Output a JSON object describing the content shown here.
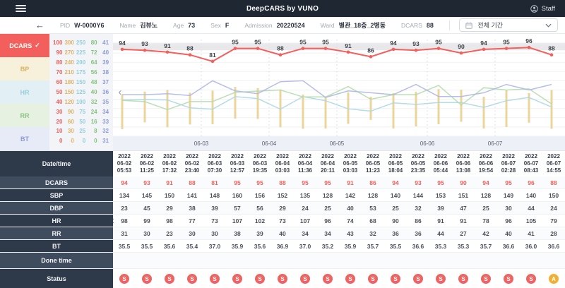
{
  "header": {
    "title": "DeepCARS by VUNO",
    "user_label": "Staff"
  },
  "patient": {
    "fields": [
      {
        "label": "PID",
        "value": "W-0000Y6"
      },
      {
        "label": "Name",
        "value": "김뷰노"
      },
      {
        "label": "Age",
        "value": "73"
      },
      {
        "label": "Sex",
        "value": "F"
      },
      {
        "label": "Admission",
        "value": "20220524"
      },
      {
        "label": "Ward",
        "value": "별관_18층_2병동"
      },
      {
        "label": "DCARS",
        "value": "88"
      }
    ],
    "period_filter": "전체 기간"
  },
  "sidebar": {
    "metrics": [
      {
        "id": "dcars",
        "label": "DCARS",
        "selected": true,
        "bg": "#f25f5c",
        "fg": "#ffffff"
      },
      {
        "id": "bp",
        "label": "BP",
        "selected": false,
        "bg": "#f7f0da",
        "fg": "#d9b35e"
      },
      {
        "id": "hr",
        "label": "HR",
        "selected": false,
        "bg": "#e2eff5",
        "fg": "#97cedd"
      },
      {
        "id": "rr",
        "label": "RR",
        "selected": false,
        "bg": "#e6f1e2",
        "fg": "#8bc482"
      },
      {
        "id": "bt",
        "label": "BT",
        "selected": false,
        "bg": "#e7eaf7",
        "fg": "#8d9ad9"
      }
    ],
    "scales": [
      {
        "metric": "DCARS",
        "color": "#f25f5c",
        "ticks": [
          100,
          90,
          80,
          70,
          60,
          50,
          40,
          30,
          20,
          10,
          0
        ]
      },
      {
        "metric": "BP",
        "color": "#ddb463",
        "ticks": [
          300,
          270,
          240,
          210,
          180,
          150,
          120,
          90,
          60,
          30,
          0
        ]
      },
      {
        "metric": "HR",
        "color": "#93cedd",
        "ticks": [
          250,
          225,
          200,
          175,
          150,
          125,
          100,
          75,
          50,
          25,
          0
        ]
      },
      {
        "metric": "RR",
        "color": "#83c27b",
        "ticks": [
          80,
          72,
          64,
          56,
          48,
          40,
          32,
          24,
          16,
          8,
          0
        ]
      },
      {
        "metric": "BT",
        "color": "#8d9ad9",
        "ticks": [
          41,
          40,
          39,
          38,
          37,
          36,
          35,
          34,
          33,
          32,
          31
        ]
      }
    ]
  },
  "chart_data": {
    "type": "line",
    "title": "DCARS and vital signs trend",
    "x": [
      "2022-06-02 05:53",
      "2022-06-02 11:25",
      "2022-06-02 17:32",
      "2022-06-02 23:40",
      "2022-06-03 07:30",
      "2022-06-03 12:57",
      "2022-06-03 19:35",
      "2022-06-04 03:03",
      "2022-06-04 11:36",
      "2022-06-04 20:11",
      "2022-06-05 03:03",
      "2022-06-05 11:23",
      "2022-06-05 18:04",
      "2022-06-05 23:35",
      "2022-06-06 05:44",
      "2022-06-06 13:08",
      "2022-06-06 19:54",
      "2022-06-07 02:28",
      "2022-06-07 08:43",
      "2022-06-07 14:55"
    ],
    "date_axis_labels": [
      "06-03",
      "06-04",
      "06-05",
      "06-06",
      "06-07"
    ],
    "threshold_band": {
      "from": 93,
      "to": 101,
      "color": "#e8e8eb"
    },
    "series": [
      {
        "name": "DCARS",
        "kind": "line",
        "color": "#f25f5c",
        "range": [
          0,
          100
        ],
        "show_labels": true,
        "values": [
          94,
          93,
          91,
          88,
          81,
          95,
          95,
          88,
          95,
          95,
          91,
          86,
          94,
          93,
          95,
          90,
          94,
          95,
          96,
          88
        ]
      },
      {
        "name": "SBP",
        "kind": "range-high",
        "color": "#ecd49b",
        "range": [
          0,
          300
        ],
        "values": [
          134,
          145,
          150,
          141,
          148,
          160,
          156,
          152,
          135,
          128,
          142,
          128,
          140,
          144,
          153,
          151,
          128,
          149,
          140,
          150
        ]
      },
      {
        "name": "DBP",
        "kind": "range-low",
        "color": "#ecd49b",
        "range": [
          0,
          300
        ],
        "values": [
          23,
          45,
          29,
          38,
          39,
          57,
          56,
          29,
          24,
          25,
          40,
          53,
          25,
          32,
          39,
          47,
          25,
          30,
          44,
          24
        ]
      },
      {
        "name": "HR",
        "kind": "line",
        "color": "#abd8e4",
        "range": [
          0,
          250
        ],
        "values": [
          98,
          99,
          98,
          77,
          73,
          107,
          102,
          73,
          107,
          96,
          74,
          68,
          90,
          86,
          91,
          91,
          78,
          96,
          105,
          79
        ]
      },
      {
        "name": "RR",
        "kind": "line",
        "color": "#b5dbab",
        "range": [
          0,
          80
        ],
        "values": [
          31,
          30,
          23,
          30,
          30,
          38,
          39,
          40,
          34,
          34,
          43,
          32,
          36,
          36,
          44,
          27,
          42,
          40,
          41,
          28
        ]
      },
      {
        "name": "BT",
        "kind": "line",
        "color": "#aeb7e6",
        "range": [
          31,
          41
        ],
        "values": [
          35.5,
          35.5,
          35.6,
          35.4,
          37.0,
          35.9,
          35.6,
          36.9,
          37.0,
          35.2,
          35.9,
          35.7,
          35.5,
          36.6,
          35.3,
          35.3,
          35.7,
          36.6,
          36.0,
          36.6
        ]
      }
    ]
  },
  "table": {
    "row_labels": [
      "Date/time",
      "DCARS",
      "SBP",
      "DBP",
      "HR",
      "RR",
      "BT",
      "Done time",
      "Status"
    ],
    "columns": [
      {
        "year": "2022",
        "date": "06-02",
        "time": "05:53"
      },
      {
        "year": "2022",
        "date": "06-02",
        "time": "11:25"
      },
      {
        "year": "2022",
        "date": "06-02",
        "time": "17:32"
      },
      {
        "year": "2022",
        "date": "06-02",
        "time": "23:40"
      },
      {
        "year": "2022",
        "date": "06-03",
        "time": "07:30"
      },
      {
        "year": "2022",
        "date": "06-03",
        "time": "12:57"
      },
      {
        "year": "2022",
        "date": "06-03",
        "time": "19:35"
      },
      {
        "year": "2022",
        "date": "06-04",
        "time": "03:03"
      },
      {
        "year": "2022",
        "date": "06-04",
        "time": "11:36"
      },
      {
        "year": "2022",
        "date": "06-04",
        "time": "20:11"
      },
      {
        "year": "2022",
        "date": "06-05",
        "time": "03:03"
      },
      {
        "year": "2022",
        "date": "06-05",
        "time": "11:23"
      },
      {
        "year": "2022",
        "date": "06-05",
        "time": "18:04"
      },
      {
        "year": "2022",
        "date": "06-05",
        "time": "23:35"
      },
      {
        "year": "2022",
        "date": "06-06",
        "time": "05:44"
      },
      {
        "year": "2022",
        "date": "06-06",
        "time": "13:08"
      },
      {
        "year": "2022",
        "date": "06-06",
        "time": "19:54"
      },
      {
        "year": "2022",
        "date": "06-07",
        "time": "02:28"
      },
      {
        "year": "2022",
        "date": "06-07",
        "time": "08:43"
      },
      {
        "year": "2022",
        "date": "06-07",
        "time": "14:55"
      }
    ],
    "status": [
      "S",
      "S",
      "S",
      "S",
      "S",
      "S",
      "S",
      "S",
      "S",
      "S",
      "S",
      "S",
      "S",
      "S",
      "S",
      "S",
      "S",
      "S",
      "S",
      "A"
    ],
    "status_colors": {
      "S": "#f16262",
      "A": "#f2b033"
    }
  }
}
